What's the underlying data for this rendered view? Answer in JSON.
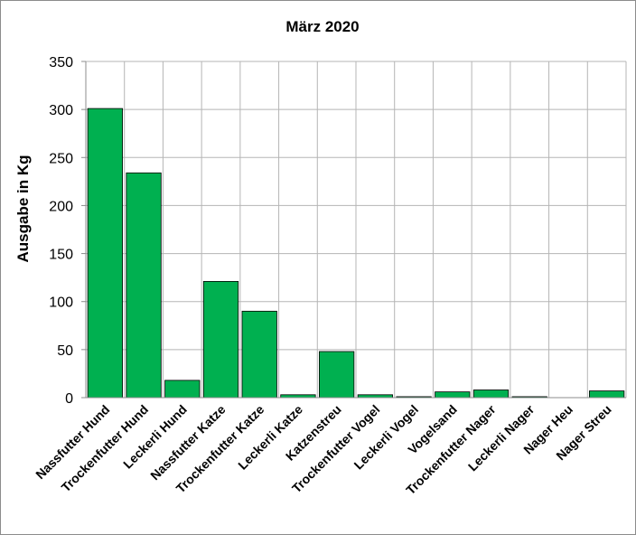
{
  "chart_data": {
    "type": "bar",
    "title": "März 2020",
    "ylabel": "Ausgabe in Kg",
    "xlabel": "",
    "ylim": [
      0,
      350
    ],
    "yticks": [
      0,
      50,
      100,
      150,
      200,
      250,
      300,
      350
    ],
    "grid": true,
    "bar_color": "#00b050",
    "categories": [
      "Nassfutter Hund",
      "Trockenfutter Hund",
      "Leckerli Hund",
      "Nassfutter Katze",
      "Trockenfutter Katze",
      "Leckerli Katze",
      "Katzenstreu",
      "Trockenfutter Vogel",
      "Leckerli Vogel",
      "Vogelsand",
      "Trockenfutter Nager",
      "Leckerli Nager",
      "Nager Heu",
      "Nager Streu"
    ],
    "values": [
      301,
      234,
      18,
      121,
      90,
      3,
      48,
      3,
      1,
      6,
      8,
      1,
      0,
      7
    ]
  }
}
